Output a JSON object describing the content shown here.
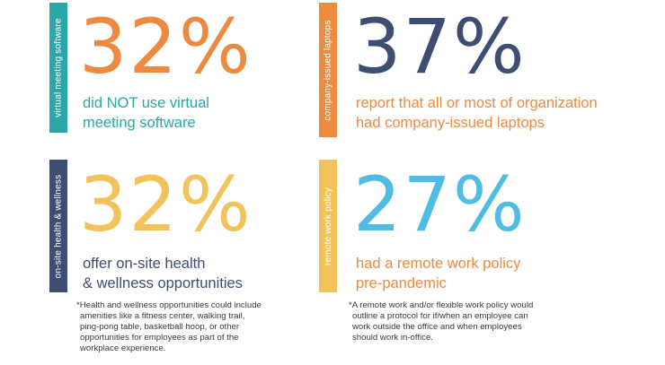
{
  "colors": {
    "teal": "#2aa7a6",
    "orange": "#ee8a3f",
    "navy": "#3d4d73",
    "yellow": "#f2c35a",
    "sky": "#4fbde3",
    "note_text": "#3a3a3a"
  },
  "stats": [
    {
      "tab_label": "virtual meeting software",
      "percent": "32%",
      "description_line1": "did NOT use virtual",
      "description_line2": "meeting software"
    },
    {
      "tab_label": "company-issued laptops",
      "percent": "37%",
      "description_line1": "report that all or most of organization",
      "description_line2": "had company-issued laptops"
    },
    {
      "tab_label": "on-site health & wellness",
      "percent": "32%",
      "description_line1": "offer on-site health",
      "description_line2": "& wellness opportunities",
      "footnote": [
        "*Health and wellness opportunities could include",
        "amenities like a fitness center, walking trail,",
        "ping-pong table, basketball hoop, or other",
        "opportunities for employees as part of the",
        "workplace experience."
      ]
    },
    {
      "tab_label": "remote work policy",
      "percent": "27%",
      "description_line1": "had a remote work policy",
      "description_line2": "pre-pandemic",
      "footnote": [
        "*A remote work and/or flexible work policy would",
        "outline a protocol for if/when an employee can",
        "work outside the office and when employees",
        "should work in-office."
      ]
    }
  ]
}
